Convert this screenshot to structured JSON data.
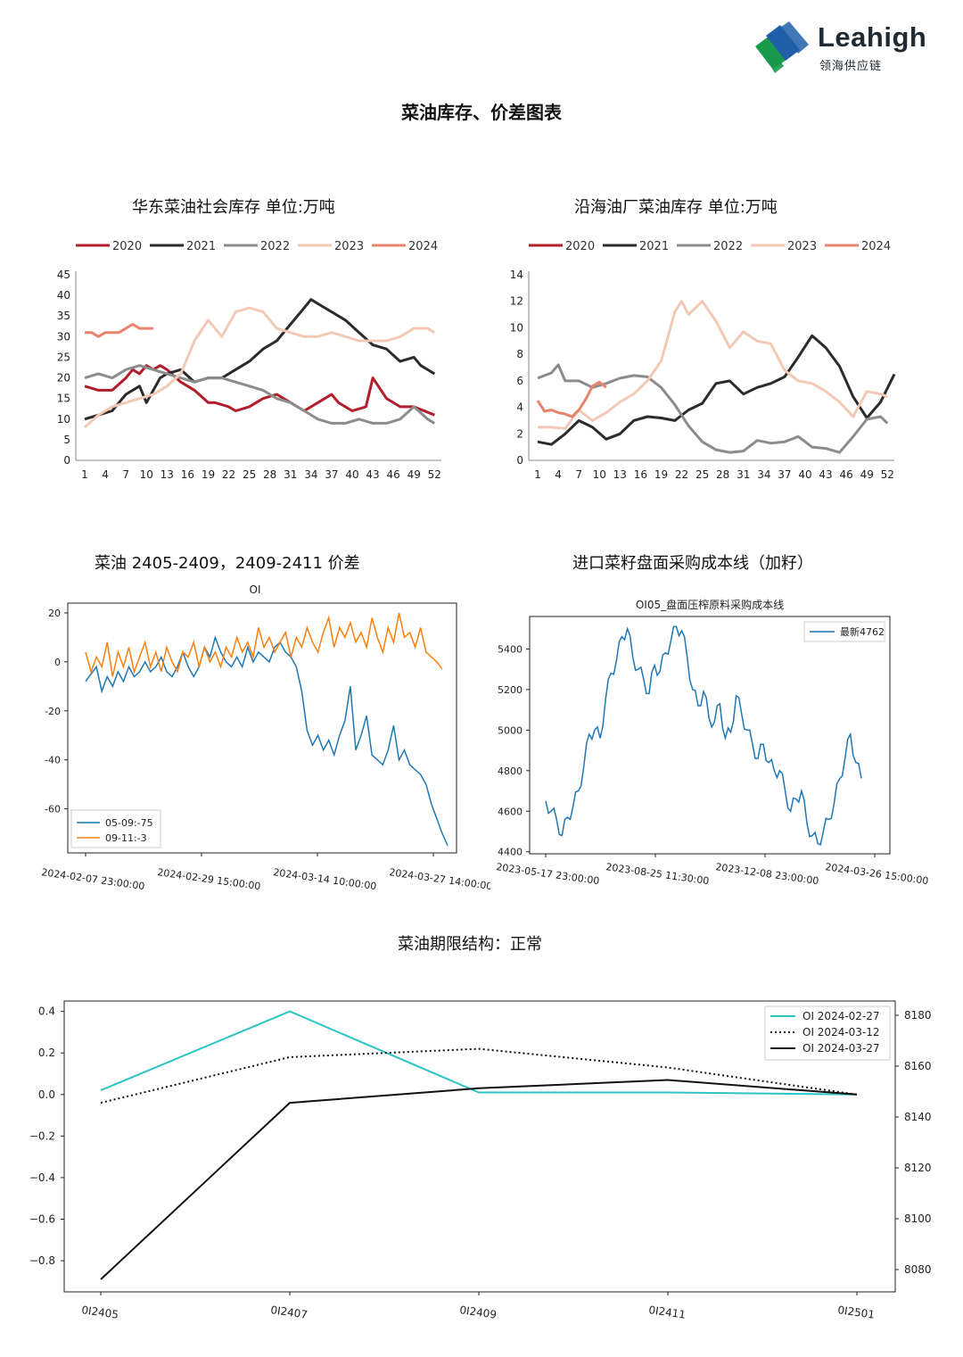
{
  "brand": {
    "name": "Leahigh",
    "subtitle": "领海供应链",
    "colors": [
      "#1a9a4a",
      "#1f5fa8",
      "#1f2a33"
    ]
  },
  "page_title": "菜油库存、价差图表",
  "chart_data": [
    {
      "id": "east-inventory",
      "type": "line",
      "title": "华东菜油社会库存  单位:万吨",
      "x_ticks": [
        1,
        4,
        7,
        10,
        13,
        16,
        19,
        22,
        25,
        28,
        31,
        34,
        37,
        40,
        43,
        46,
        49,
        52
      ],
      "y_ticks": [
        0,
        5,
        10,
        15,
        20,
        25,
        30,
        35,
        40,
        45
      ],
      "ylim": [
        0,
        45
      ],
      "xlim": [
        1,
        53
      ],
      "legend": "top",
      "series": [
        {
          "name": "2020",
          "color": "#b11d2a",
          "x": [
            1,
            3,
            5,
            7,
            8,
            9,
            10,
            11,
            12,
            13,
            15,
            17,
            19,
            20,
            22,
            23,
            25,
            27,
            29,
            31,
            33,
            35,
            37,
            38,
            40,
            42,
            43,
            45,
            47,
            49,
            52
          ],
          "values": [
            18,
            17,
            17,
            20,
            22,
            21,
            23,
            22,
            23,
            22,
            19,
            17,
            14,
            14,
            13,
            12,
            13,
            15,
            16,
            14,
            12,
            14,
            16,
            14,
            12,
            13,
            20,
            15,
            13,
            13,
            11
          ]
        },
        {
          "name": "2021",
          "color": "#2b2b2b",
          "x": [
            1,
            3,
            5,
            7,
            9,
            10,
            12,
            13,
            15,
            17,
            19,
            21,
            23,
            25,
            27,
            29,
            31,
            33,
            34,
            35,
            37,
            39,
            41,
            43,
            45,
            47,
            49,
            50,
            52
          ],
          "values": [
            10,
            11,
            12,
            16,
            18,
            14,
            20,
            21,
            22,
            19,
            20,
            20,
            22,
            24,
            27,
            29,
            33,
            37,
            39,
            38,
            36,
            34,
            31,
            28,
            27,
            24,
            25,
            23,
            21
          ]
        },
        {
          "name": "2022",
          "color": "#8c8c8c",
          "x": [
            1,
            3,
            5,
            7,
            9,
            11,
            13,
            15,
            17,
            19,
            21,
            23,
            25,
            27,
            29,
            31,
            33,
            35,
            37,
            39,
            41,
            43,
            45,
            47,
            49,
            51,
            52
          ],
          "values": [
            20,
            21,
            20,
            22,
            23,
            22,
            21,
            20,
            19,
            20,
            20,
            19,
            18,
            17,
            15,
            14,
            12,
            10,
            9,
            9,
            10,
            9,
            9,
            10,
            13,
            10,
            9
          ]
        },
        {
          "name": "2023",
          "color": "#f2c9b4",
          "x": [
            1,
            3,
            5,
            7,
            9,
            11,
            13,
            15,
            17,
            19,
            21,
            23,
            25,
            27,
            29,
            31,
            33,
            35,
            37,
            39,
            41,
            43,
            45,
            47,
            49,
            51,
            52
          ],
          "values": [
            8,
            11,
            13,
            14,
            15,
            16,
            18,
            21,
            29,
            34,
            30,
            36,
            37,
            36,
            32,
            31,
            30,
            30,
            31,
            30,
            29,
            29,
            29,
            30,
            32,
            32,
            31
          ]
        },
        {
          "name": "2024",
          "color": "#e8846b",
          "x": [
            1,
            2,
            3,
            4,
            5,
            6,
            7,
            8,
            9,
            10,
            11
          ],
          "values": [
            31,
            31,
            30,
            31,
            31,
            31,
            32,
            33,
            32,
            32,
            32
          ]
        }
      ]
    },
    {
      "id": "coastal-inventory",
      "type": "line",
      "title": "沿海油厂菜油库存  单位:万吨",
      "x_ticks": [
        1,
        4,
        7,
        10,
        13,
        16,
        19,
        22,
        25,
        28,
        31,
        34,
        37,
        40,
        43,
        46,
        49,
        52
      ],
      "y_ticks": [
        0,
        2,
        4,
        6,
        8,
        10,
        12,
        14
      ],
      "ylim": [
        0,
        14
      ],
      "xlim": [
        1,
        53
      ],
      "legend": "top",
      "series": [
        {
          "name": "2020",
          "color": "#b11d2a",
          "x": [],
          "values": []
        },
        {
          "name": "2021",
          "color": "#2b2b2b",
          "x": [
            1,
            3,
            5,
            7,
            9,
            11,
            13,
            15,
            17,
            19,
            21,
            23,
            25,
            27,
            29,
            31,
            33,
            35,
            37,
            39,
            41,
            43,
            45,
            47,
            49,
            51,
            53
          ],
          "values": [
            1.4,
            1.2,
            2,
            3,
            2.5,
            1.6,
            2,
            3,
            3.3,
            3.2,
            3,
            3.8,
            4.3,
            5.8,
            6,
            5,
            5.5,
            5.8,
            6.3,
            7.8,
            9.4,
            8.5,
            7.1,
            4.8,
            3.2,
            4.4,
            6.5
          ]
        },
        {
          "name": "2022",
          "color": "#8c8c8c",
          "x": [
            1,
            3,
            4,
            5,
            7,
            9,
            11,
            13,
            15,
            17,
            19,
            21,
            23,
            25,
            27,
            29,
            31,
            33,
            35,
            37,
            39,
            41,
            43,
            45,
            47,
            49,
            51,
            52
          ],
          "values": [
            6.2,
            6.6,
            7.2,
            6,
            6,
            5.5,
            5.8,
            6.2,
            6.4,
            6.3,
            5.5,
            4.2,
            2.6,
            1.4,
            0.8,
            0.6,
            0.7,
            1.5,
            1.3,
            1.4,
            1.8,
            1,
            0.9,
            0.6,
            1.8,
            3.1,
            3.3,
            2.8
          ]
        },
        {
          "name": "2023",
          "color": "#f2c9b4",
          "x": [
            1,
            3,
            5,
            7,
            9,
            11,
            13,
            15,
            17,
            19,
            21,
            22,
            23,
            25,
            27,
            29,
            31,
            33,
            35,
            37,
            39,
            41,
            43,
            45,
            47,
            49,
            51,
            52
          ],
          "values": [
            2.5,
            2.5,
            2.4,
            3.8,
            3,
            3.6,
            4.4,
            5,
            6,
            7.5,
            11.2,
            12,
            11,
            12,
            10.5,
            8.5,
            9.7,
            9,
            8.8,
            6.8,
            6,
            5.8,
            5.2,
            4.4,
            3.3,
            5.2,
            5,
            4.8
          ]
        },
        {
          "name": "2024",
          "color": "#e8846b",
          "x": [
            1,
            2,
            3,
            4,
            5,
            6,
            7,
            8,
            9,
            10,
            11
          ],
          "values": [
            4.5,
            3.7,
            3.8,
            3.6,
            3.5,
            3.3,
            3.8,
            4.6,
            5.6,
            5.9,
            5.5
          ]
        }
      ]
    },
    {
      "id": "spread",
      "type": "line",
      "title": "菜油 2405-2409，2409-2411 价差",
      "subtitle": "OI",
      "y_ticks": [
        20,
        0,
        -20,
        -40,
        -60
      ],
      "ylim": [
        -78,
        24
      ],
      "x_ticks": [
        "2024-02-07  23:00:00",
        "2024-02-29  15:00:00",
        "2024-03-14  10:00:00",
        "2024-03-27  14:00:00"
      ],
      "legend": "lower-left",
      "series": [
        {
          "name": "05-09:-75",
          "color": "#1f77b4",
          "values": [
            -8,
            -5,
            -2,
            -12,
            -6,
            -10,
            -4,
            -8,
            -2,
            -6,
            -4,
            0,
            -4,
            -2,
            2,
            -4,
            -6,
            -2,
            4,
            -2,
            -6,
            -2,
            6,
            2,
            10,
            4,
            0,
            -2,
            2,
            -2,
            6,
            0,
            4,
            2,
            0,
            6,
            8,
            4,
            2,
            -2,
            -12,
            -28,
            -34,
            -30,
            -36,
            -32,
            -38,
            -30,
            -24,
            -10,
            -36,
            -30,
            -22,
            -38,
            -40,
            -42,
            -36,
            -26,
            -40,
            -36,
            -42,
            -44,
            -46,
            -50,
            -58,
            -64,
            -70,
            -75
          ]
        },
        {
          "name": "09-11:-3",
          "color": "#ff7f0e",
          "values": [
            4,
            -4,
            2,
            -2,
            8,
            -6,
            4,
            -2,
            6,
            -4,
            2,
            8,
            -2,
            4,
            -4,
            6,
            0,
            -4,
            4,
            2,
            8,
            -2,
            6,
            0,
            4,
            -2,
            6,
            2,
            10,
            4,
            8,
            2,
            14,
            6,
            10,
            4,
            8,
            12,
            2,
            10,
            6,
            14,
            8,
            4,
            12,
            18,
            6,
            14,
            10,
            16,
            8,
            12,
            6,
            18,
            10,
            4,
            14,
            8,
            20,
            10,
            12,
            6,
            14,
            4,
            2,
            0,
            -3
          ]
        }
      ]
    },
    {
      "id": "import-cost",
      "type": "line",
      "title": "进口菜籽盘面采购成本线（加籽）",
      "subtitle": "OI05_盘面压榨原料采购成本线",
      "y_ticks": [
        5400,
        5200,
        5000,
        4800,
        4600,
        4400
      ],
      "ylim": [
        4390,
        5560
      ],
      "x_ticks": [
        "2023-05-17  23:00:00",
        "2023-08-25  11:30:00",
        "2023-12-08  23:00:00",
        "2024-03-26  15:00:00"
      ],
      "legend": "top-right",
      "series": [
        {
          "name": "最新4762",
          "color": "#1f77b4",
          "values": [
            4650,
            4600,
            4560,
            4480,
            4570,
            4620,
            4700,
            4820,
            4980,
            5000,
            4960,
            5150,
            5280,
            5340,
            5460,
            5500,
            5360,
            5300,
            5250,
            5180,
            5320,
            5290,
            5380,
            5440,
            5510,
            5490,
            5360,
            5200,
            5120,
            5190,
            5060,
            5040,
            5130,
            4960,
            4990,
            5170,
            5080,
            5000,
            4930,
            4860,
            4930,
            4840,
            4800,
            4800,
            4700,
            4600,
            4660,
            4700,
            4540,
            4480,
            4440,
            4500,
            4560,
            4640,
            4760,
            4860,
            4980,
            4840,
            4762
          ]
        }
      ]
    },
    {
      "id": "term-structure",
      "type": "line",
      "title": "菜油期限结构：正常",
      "categories": [
        "0I2405",
        "0I2407",
        "0I2409",
        "0I2411",
        "0I2501"
      ],
      "y_ticks_left": [
        0.4,
        0.2,
        0.0,
        -0.2,
        -0.4,
        -0.6,
        -0.8
      ],
      "y_ticks_left_labels": [
        "0.4",
        "0.2",
        "0.0",
        "−0.2",
        "−0.4",
        "−0.6",
        "−0.8"
      ],
      "y_ticks_right": [
        8180,
        8160,
        8140,
        8120,
        8100,
        8080
      ],
      "ylim_left": [
        -0.95,
        0.45
      ],
      "legend": "top-right",
      "series": [
        {
          "name": "OI  2024-02-27",
          "color": "#2ec4c4",
          "style": "solid",
          "values": [
            0.02,
            0.4,
            0.01,
            0.01,
            0.0
          ]
        },
        {
          "name": "OI  2024-03-12",
          "color": "#111111",
          "style": "dotted",
          "values": [
            -0.04,
            0.18,
            0.22,
            0.13,
            0.0
          ]
        },
        {
          "name": "OI  2024-03-27",
          "color": "#111111",
          "style": "solid",
          "values": [
            -0.89,
            -0.04,
            0.03,
            0.07,
            0.0
          ]
        }
      ]
    }
  ]
}
